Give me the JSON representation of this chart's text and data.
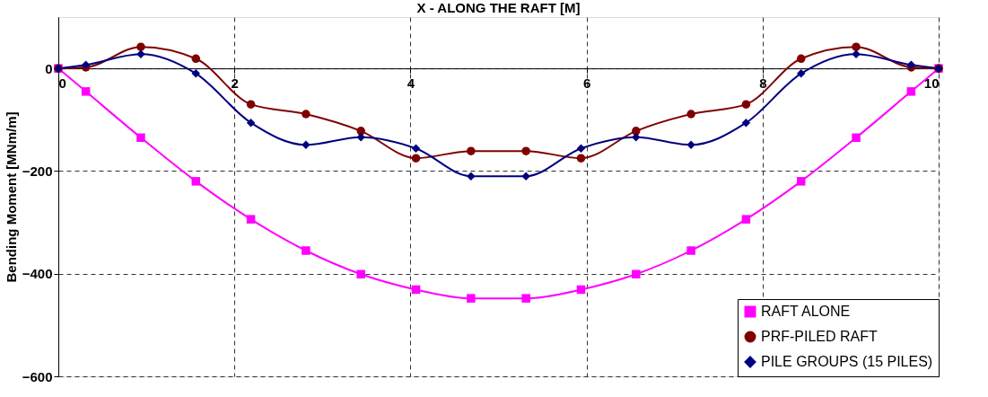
{
  "chart_data": {
    "type": "line",
    "xlabel": "X -  ALONG THE RAFT [M]",
    "ylabel": "Bending Moment [MNm/m]",
    "x": [
      0,
      0.3125,
      0.9375,
      1.5625,
      2.1875,
      2.8125,
      3.4375,
      4.0625,
      4.6875,
      5.3125,
      5.9375,
      6.5625,
      7.1875,
      7.8125,
      8.4375,
      9.0625,
      9.6875,
      10
    ],
    "series": [
      {
        "name": "RAFT ALONE",
        "color": "#ff00ff",
        "marker": "square",
        "values": [
          0,
          -45,
          -135,
          -220,
          -294,
          -355,
          -401,
          -431,
          -448,
          -448,
          -431,
          -401,
          -355,
          -294,
          -220,
          -135,
          -45,
          0
        ]
      },
      {
        "name": "PRF-PILED RAFT",
        "color": "#800000",
        "marker": "circle",
        "values": [
          0,
          2,
          42,
          19,
          -70,
          -89,
          -122,
          -175,
          -161,
          -161,
          -175,
          -122,
          -89,
          -70,
          19,
          42,
          2,
          0
        ]
      },
      {
        "name": "PILE GROUPS (15 PILES)",
        "color": "#000080",
        "marker": "diamond",
        "values": [
          0,
          7,
          28,
          -10,
          -106,
          -149,
          -134,
          -156,
          -210,
          -210,
          -156,
          -134,
          -149,
          -106,
          -10,
          28,
          7,
          0
        ]
      }
    ],
    "xlim": [
      0,
      10
    ],
    "xticks": [
      0,
      2,
      4,
      6,
      8,
      10
    ],
    "ylim": [
      -600,
      100
    ],
    "yticks": [
      -600,
      -400,
      -200,
      0
    ],
    "grid": true,
    "legend": "bottom right",
    "line_style": "solid"
  }
}
